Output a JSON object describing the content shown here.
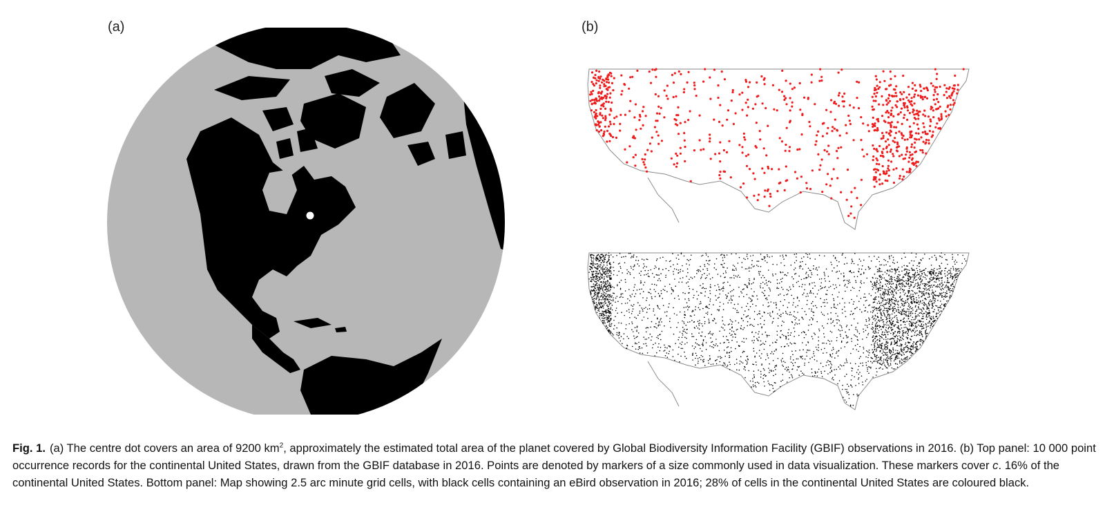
{
  "panels": {
    "a": {
      "label": "(a)"
    },
    "b": {
      "label": "(b)"
    }
  },
  "colors": {
    "ocean": "#b7b7b7",
    "land": "#000000",
    "occurrence_points": "#ee1c1c",
    "ebird_cells": "#000000",
    "outline": "#7a7a7a"
  },
  "caption": {
    "fig_label": "Fig.  1.",
    "text_a1": "(a) The centre dot covers an area of 9200 km",
    "sup": "2",
    "text_a2": ", approximately the estimated total area of the planet covered by Global Biodiversity Information Facility (GBIF) observations in 2016. (b) Top panel: 10 000 point occurrence records for the continental United States, drawn from the GBIF database in 2016. Points are denoted by markers of a size commonly used in data visualization. These markers cover ",
    "c_ital": "c",
    "text_a3": ". 16% of the continental United States. Bottom panel: Map showing 2.5 arc minute grid cells, with black cells containing an eBird observation in 2016; 28% of cells in the continental United States are coloured black."
  }
}
